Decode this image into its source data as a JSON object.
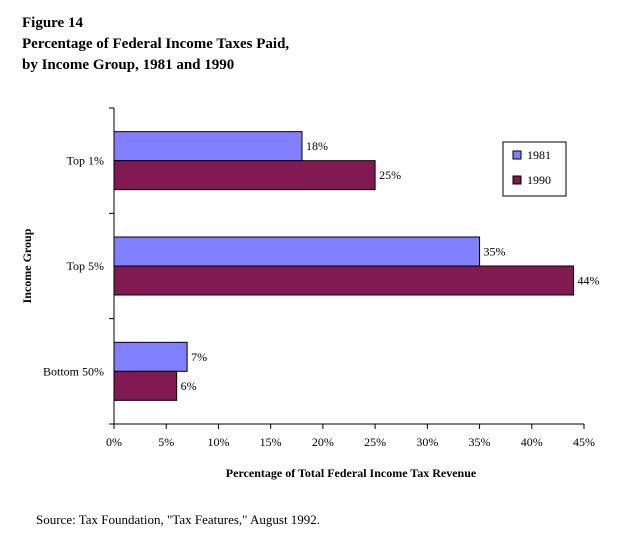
{
  "figure": {
    "label": "Figure 14",
    "title_line1": "Percentage of Federal Income Taxes Paid,",
    "title_line2": "by Income Group, 1981 and 1990"
  },
  "source": "Source: Tax Foundation, \"Tax Features,\" August 1992.",
  "chart_data": {
    "type": "bar",
    "orientation": "horizontal",
    "categories": [
      "Top 1%",
      "Top 5%",
      "Bottom 50%"
    ],
    "series": [
      {
        "name": "1981",
        "values": [
          18,
          35,
          7
        ],
        "labels": [
          "18%",
          "35%",
          "7%"
        ],
        "color": "#8080ff"
      },
      {
        "name": "1990",
        "values": [
          25,
          44,
          6
        ],
        "labels": [
          "25%",
          "44%",
          "6%"
        ],
        "color": "#801a50"
      }
    ],
    "xlabel": "Percentage of Total Federal Income Tax Revenue",
    "ylabel": "Income Group",
    "xlim": [
      0,
      45
    ],
    "xticks": [
      0,
      5,
      10,
      15,
      20,
      25,
      30,
      35,
      40,
      45
    ],
    "xtick_labels": [
      "0%",
      "5%",
      "10%",
      "15%",
      "20%",
      "25%",
      "30%",
      "35%",
      "40%",
      "45%"
    ],
    "grid": false,
    "legend_position": "top-right"
  }
}
